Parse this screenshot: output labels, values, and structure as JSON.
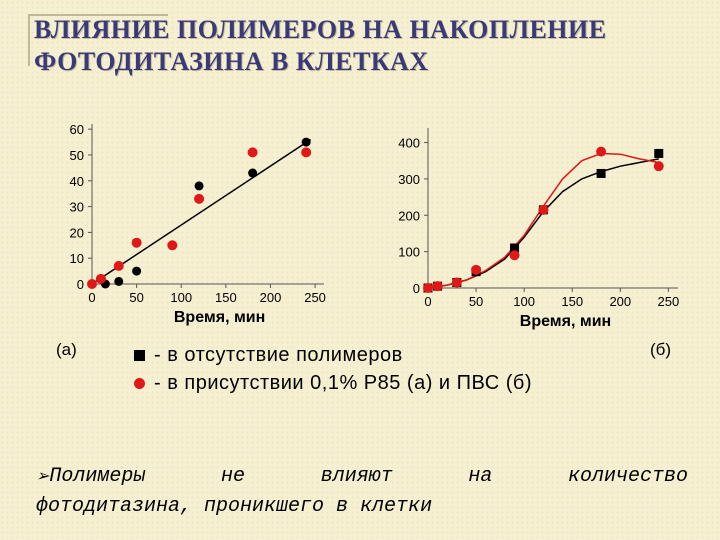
{
  "title": {
    "line1": "ВЛИЯНИЕ ПОЛИМЕРОВ НА НАКОПЛЕНИЕ",
    "line2": "ФОТОДИТАЗИНА В КЛЕТКАХ"
  },
  "chart_data": [
    {
      "type": "scatter",
      "panel_label": "(а)",
      "xlabel": "Время, мин",
      "ylabel": "",
      "xlim": [
        0,
        260
      ],
      "ylim": [
        0,
        62
      ],
      "xticks": [
        0,
        50,
        100,
        150,
        200,
        250
      ],
      "yticks": [
        0,
        10,
        20,
        30,
        40,
        50,
        60
      ],
      "series": [
        {
          "marker": "black",
          "color": "#000000",
          "x": [
            0,
            15,
            30,
            50,
            120,
            180,
            240
          ],
          "y": [
            0,
            0,
            1,
            5,
            38,
            43,
            55
          ]
        },
        {
          "marker": "red",
          "color": "#e01818",
          "x": [
            0,
            10,
            30,
            50,
            90,
            120,
            180,
            240
          ],
          "y": [
            0,
            2,
            7,
            16,
            15,
            33,
            51,
            51
          ]
        }
      ],
      "fit": {
        "type": "linear",
        "x": [
          0,
          245
        ],
        "y": [
          0,
          56
        ],
        "color": "#000000"
      }
    },
    {
      "type": "scatter",
      "panel_label": "(б)",
      "xlabel": "Время, мин",
      "ylabel": "",
      "xlim": [
        0,
        260
      ],
      "ylim": [
        0,
        440
      ],
      "xticks": [
        0,
        50,
        100,
        150,
        200,
        250
      ],
      "yticks": [
        0,
        100,
        200,
        300,
        400
      ],
      "series": [
        {
          "marker": "black",
          "color": "#000000",
          "x": [
            0,
            10,
            30,
            50,
            90,
            120,
            180,
            240
          ],
          "y": [
            0,
            5,
            15,
            45,
            110,
            215,
            315,
            370
          ]
        },
        {
          "marker": "red",
          "color": "#e01818",
          "x": [
            0,
            10,
            30,
            50,
            90,
            120,
            180,
            240
          ],
          "y": [
            0,
            5,
            15,
            50,
            90,
            215,
            375,
            335
          ]
        }
      ],
      "fits": [
        {
          "color": "#000000",
          "x": [
            0,
            20,
            40,
            60,
            80,
            100,
            120,
            140,
            160,
            180,
            200,
            220,
            240
          ],
          "y": [
            0,
            8,
            22,
            45,
            80,
            140,
            210,
            265,
            300,
            320,
            335,
            345,
            355
          ]
        },
        {
          "color": "#e01818",
          "x": [
            0,
            20,
            40,
            60,
            80,
            100,
            120,
            140,
            160,
            180,
            200,
            220,
            240
          ],
          "y": [
            0,
            8,
            22,
            48,
            85,
            145,
            225,
            300,
            350,
            370,
            368,
            355,
            345
          ]
        }
      ]
    }
  ],
  "legend": {
    "items": [
      {
        "marker": "square",
        "text": "- в отсутствие полимеров"
      },
      {
        "marker": "circle",
        "text": "- в присутствии 0,1% Р85 (а) и ПВС (б)"
      }
    ]
  },
  "conclusion": {
    "words_line1": [
      "Полимеры",
      "не",
      "влияют",
      "на",
      "количество"
    ],
    "line2": "фотодитазина, проникшего в клетки"
  }
}
